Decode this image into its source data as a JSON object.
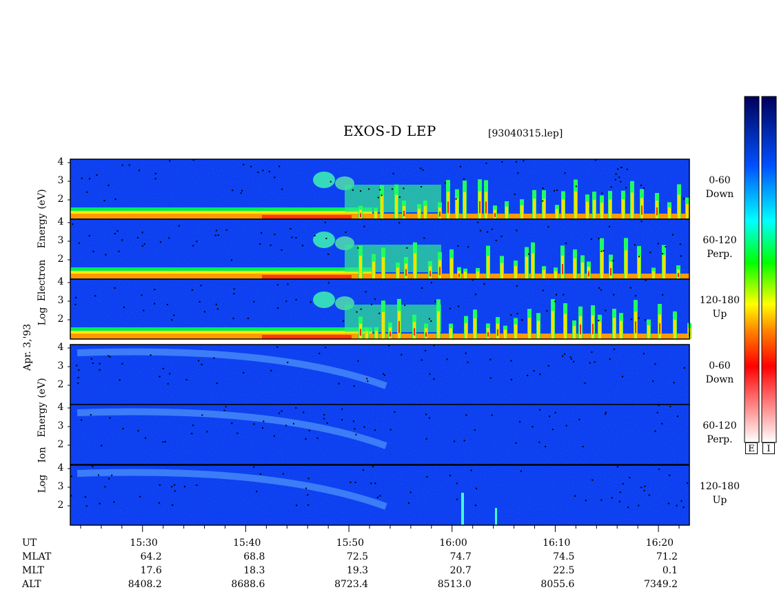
{
  "header": {
    "title": "EXOS-D LEP",
    "filename": "[93040315.lep]"
  },
  "left_label": "Apr. 3,'93",
  "colorbar_labels": [
    "E",
    "I"
  ],
  "chart_data": {
    "type": "heatmap",
    "title": "EXOS-D LEP",
    "x_axis": {
      "label": "UT",
      "range": [
        "15:23",
        "16:23"
      ],
      "major_ticks": [
        "15:30",
        "15:40",
        "15:50",
        "16:00",
        "16:10",
        "16:20"
      ],
      "minor_interval_min": 2
    },
    "panel_groups": [
      {
        "species": "Electron",
        "ylabel": "Log Electron Energy (eV)",
        "ylabel_parts": [
          "Log",
          "Electron",
          "Energy",
          "(eV)"
        ],
        "y_range": [
          1,
          4.1
        ],
        "y_ticks": [
          "4",
          "3",
          "2"
        ],
        "panels": [
          {
            "channel": [
              "0-60",
              "Down"
            ]
          },
          {
            "channel": [
              "60-120",
              "Perp."
            ]
          },
          {
            "channel": [
              "120-180",
              "Up"
            ]
          }
        ]
      },
      {
        "species": "Ion",
        "ylabel": "Log Ion Energy (eV)",
        "ylabel_parts": [
          "Log",
          "Ion",
          "Energy",
          "(eV)"
        ],
        "y_range": [
          1,
          4.1
        ],
        "y_ticks": [
          "4",
          "3",
          "2"
        ],
        "panels": [
          {
            "channel": [
              "0-60",
              "Down"
            ]
          },
          {
            "channel": [
              "60-120",
              "Perp."
            ]
          },
          {
            "channel": [
              "120-180",
              "Up"
            ]
          }
        ]
      }
    ],
    "ephemeris": {
      "rows": [
        {
          "name": "UT",
          "values": [
            "15:30",
            "15:40",
            "15:50",
            "16:00",
            "16:10",
            "16:20"
          ]
        },
        {
          "name": "MLAT",
          "values": [
            "64.2",
            "68.8",
            "72.5",
            "74.7",
            "74.5",
            "71.2"
          ]
        },
        {
          "name": "MLT",
          "values": [
            "17.6",
            "18.3",
            "19.3",
            "20.7",
            "22.5",
            "0.1"
          ]
        },
        {
          "name": "ALT",
          "values": [
            "8408.2",
            "8688.6",
            "8723.4",
            "8513.0",
            "8055.6",
            "7349.2"
          ]
        }
      ]
    },
    "colormap": [
      "#ffffff",
      "#ff0000",
      "#ff8000",
      "#ffff00",
      "#00ff00",
      "#00ffff",
      "#0040ff",
      "#000080"
    ]
  }
}
